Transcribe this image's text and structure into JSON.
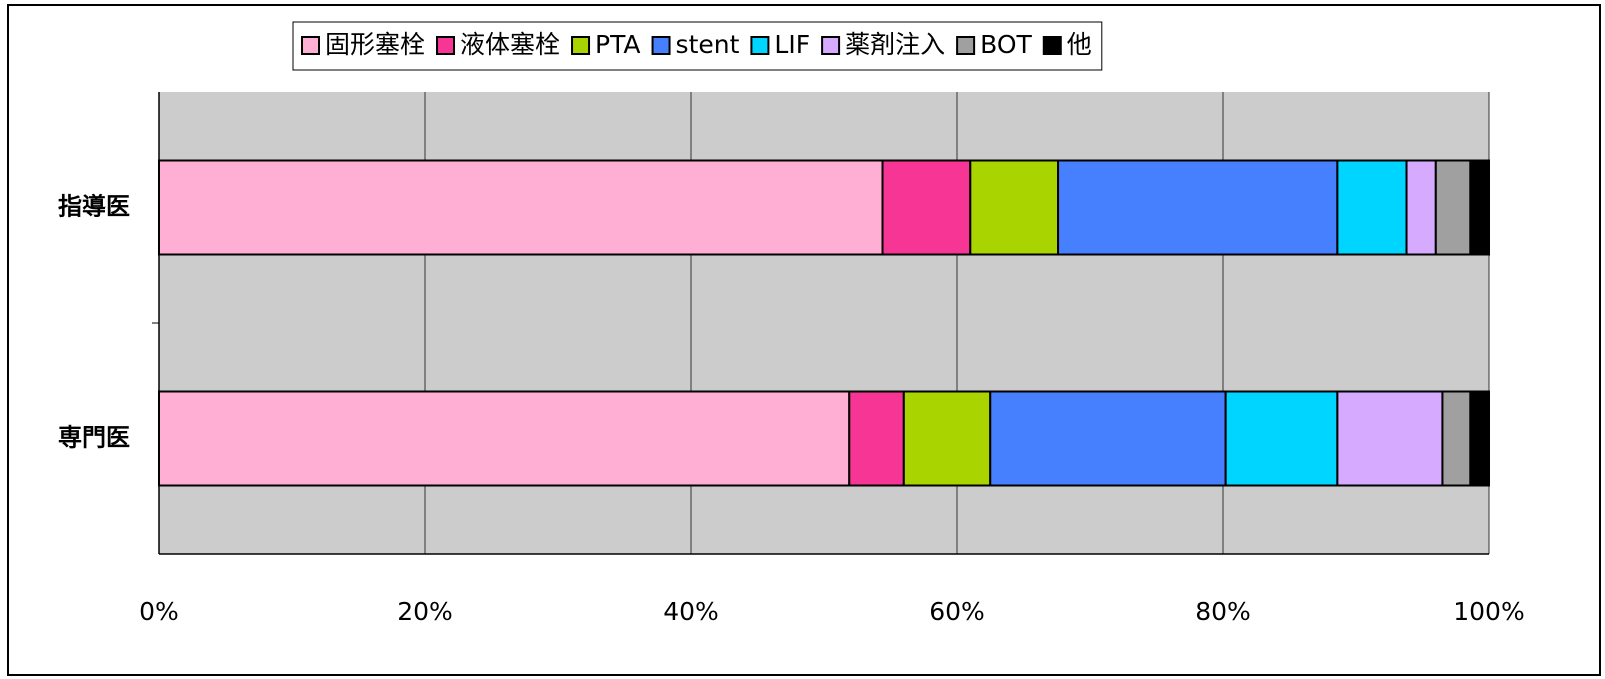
{
  "chart_data": {
    "type": "bar",
    "orientation": "horizontal",
    "stacked": true,
    "categories": [
      "指導医",
      "専門医"
    ],
    "series": [
      {
        "name": "固形塞栓",
        "color": "#ffaed4",
        "values": [
          54.4,
          51.9
        ]
      },
      {
        "name": "液体塞栓",
        "color": "#f73595",
        "values": [
          6.6,
          4.1
        ]
      },
      {
        "name": "PTA",
        "color": "#aad400",
        "values": [
          6.6,
          6.5
        ]
      },
      {
        "name": "stent",
        "color": "#4780ff",
        "values": [
          21.0,
          17.7
        ]
      },
      {
        "name": "LIF",
        "color": "#00d5ff",
        "values": [
          5.2,
          8.4
        ]
      },
      {
        "name": "薬剤注入",
        "color": "#d5aaff",
        "values": [
          2.2,
          7.9
        ]
      },
      {
        "name": "BOT",
        "color": "#a0a0a0",
        "values": [
          2.6,
          2.1
        ]
      },
      {
        "name": "他",
        "color": "#000000",
        "values": [
          1.4,
          1.4
        ]
      }
    ],
    "xlim": [
      0,
      100
    ],
    "xticks": [
      {
        "value": 0,
        "label": "0%"
      },
      {
        "value": 20,
        "label": "20%"
      },
      {
        "value": 40,
        "label": "40%"
      },
      {
        "value": 60,
        "label": "60%"
      },
      {
        "value": 80,
        "label": "80%"
      },
      {
        "value": 100,
        "label": "100%"
      }
    ],
    "grid": true,
    "legend": "top"
  }
}
